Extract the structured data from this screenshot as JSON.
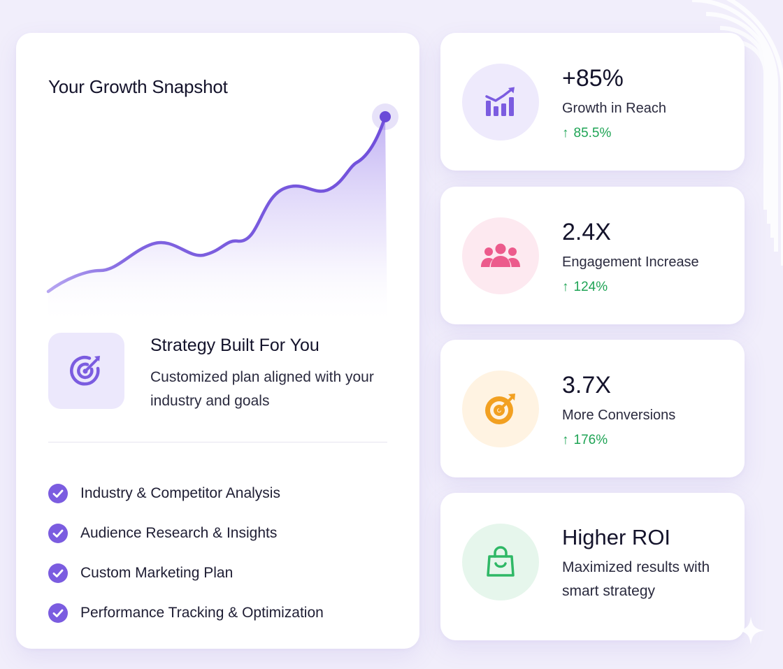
{
  "snapshot": {
    "title": "Your Growth Snapshot"
  },
  "strategy": {
    "title": "Strategy Built For You",
    "description": "Customized plan aligned with your industry and goals",
    "icon": "target-icon"
  },
  "checklist": [
    {
      "label": "Industry & Competitor Analysis"
    },
    {
      "label": "Audience Research & Insights"
    },
    {
      "label": "Custom Marketing Plan"
    },
    {
      "label": "Performance Tracking & Optimization"
    }
  ],
  "stats": [
    {
      "value": "+85%",
      "label": "Growth in Reach",
      "change": "85.5%",
      "icon": "bar-chart-growth-icon",
      "accent": "#7b5ce0",
      "tint": "#eeeafc"
    },
    {
      "value": "2.4X",
      "label": "Engagement Increase",
      "change": "124%",
      "icon": "users-group-icon",
      "accent": "#ec5b8c",
      "tint": "#fde9f0"
    },
    {
      "value": "3.7X",
      "label": "More Conversions",
      "change": "176%",
      "icon": "target-icon",
      "accent": "#f2a021",
      "tint": "#fff3e2"
    }
  ],
  "roi": {
    "title": "Higher ROI",
    "description": "Maximized results with smart strategy",
    "icon": "shopping-bag-icon",
    "accent": "#2fb866",
    "tint": "#e6f6ec"
  },
  "colors": {
    "primary": "#7b5ce0",
    "positive": "#1fa455",
    "background": "#f1eefb"
  }
}
